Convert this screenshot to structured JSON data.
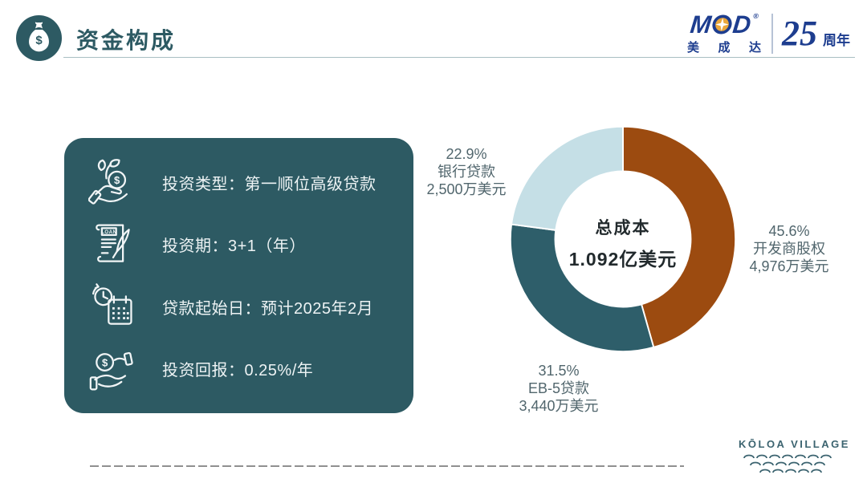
{
  "header": {
    "title": "资金构成",
    "accent_color": "#2d5a63"
  },
  "brand": {
    "letter_m": "M",
    "letter_d": "D",
    "registered": "®",
    "cn_chars": [
      "美",
      "成",
      "达"
    ],
    "anniversary_number": "25",
    "anniversary_label": "周年",
    "navy": "#1d3d8f",
    "gold": "#eaa73c"
  },
  "info_card": {
    "background": "#2d5a63",
    "items": [
      {
        "icon": "hand-coin-sprout-icon",
        "label": "投资类型：第一顺位高级贷款"
      },
      {
        "icon": "loan-contract-icon",
        "label": "投资期：3+1（年）",
        "icon_badge": "LOAN"
      },
      {
        "icon": "calendar-clock-icon",
        "label": "贷款起始日：预计2025年2月"
      },
      {
        "icon": "hand-receive-coin-icon",
        "label": "投资回报：0.25%/年"
      }
    ]
  },
  "chart_data": {
    "type": "pie",
    "subtype": "donut",
    "direction": "clockwise",
    "start_angle_deg": 0,
    "center_label": {
      "line1": "总成本",
      "line2": "1.092亿美元"
    },
    "segments": [
      {
        "id": "developer-equity",
        "name": "开发商股权",
        "percent": 45.6,
        "percent_label": "45.6%",
        "amount": "4,976万美元",
        "color": "#9c4b10"
      },
      {
        "id": "eb5-loan",
        "name": "EB-5贷款",
        "percent": 31.5,
        "percent_label": "31.5%",
        "amount": "3,440万美元",
        "color": "#2e5e6a"
      },
      {
        "id": "bank-loan",
        "name": "银行贷款",
        "percent": 22.9,
        "percent_label": "22.9%",
        "amount": "2,500万美元",
        "color": "#c5dfe6"
      }
    ]
  },
  "glyphs": {
    "dollar": "$"
  },
  "footer": {
    "project_logo": "KŌLOA VILLAGE"
  }
}
